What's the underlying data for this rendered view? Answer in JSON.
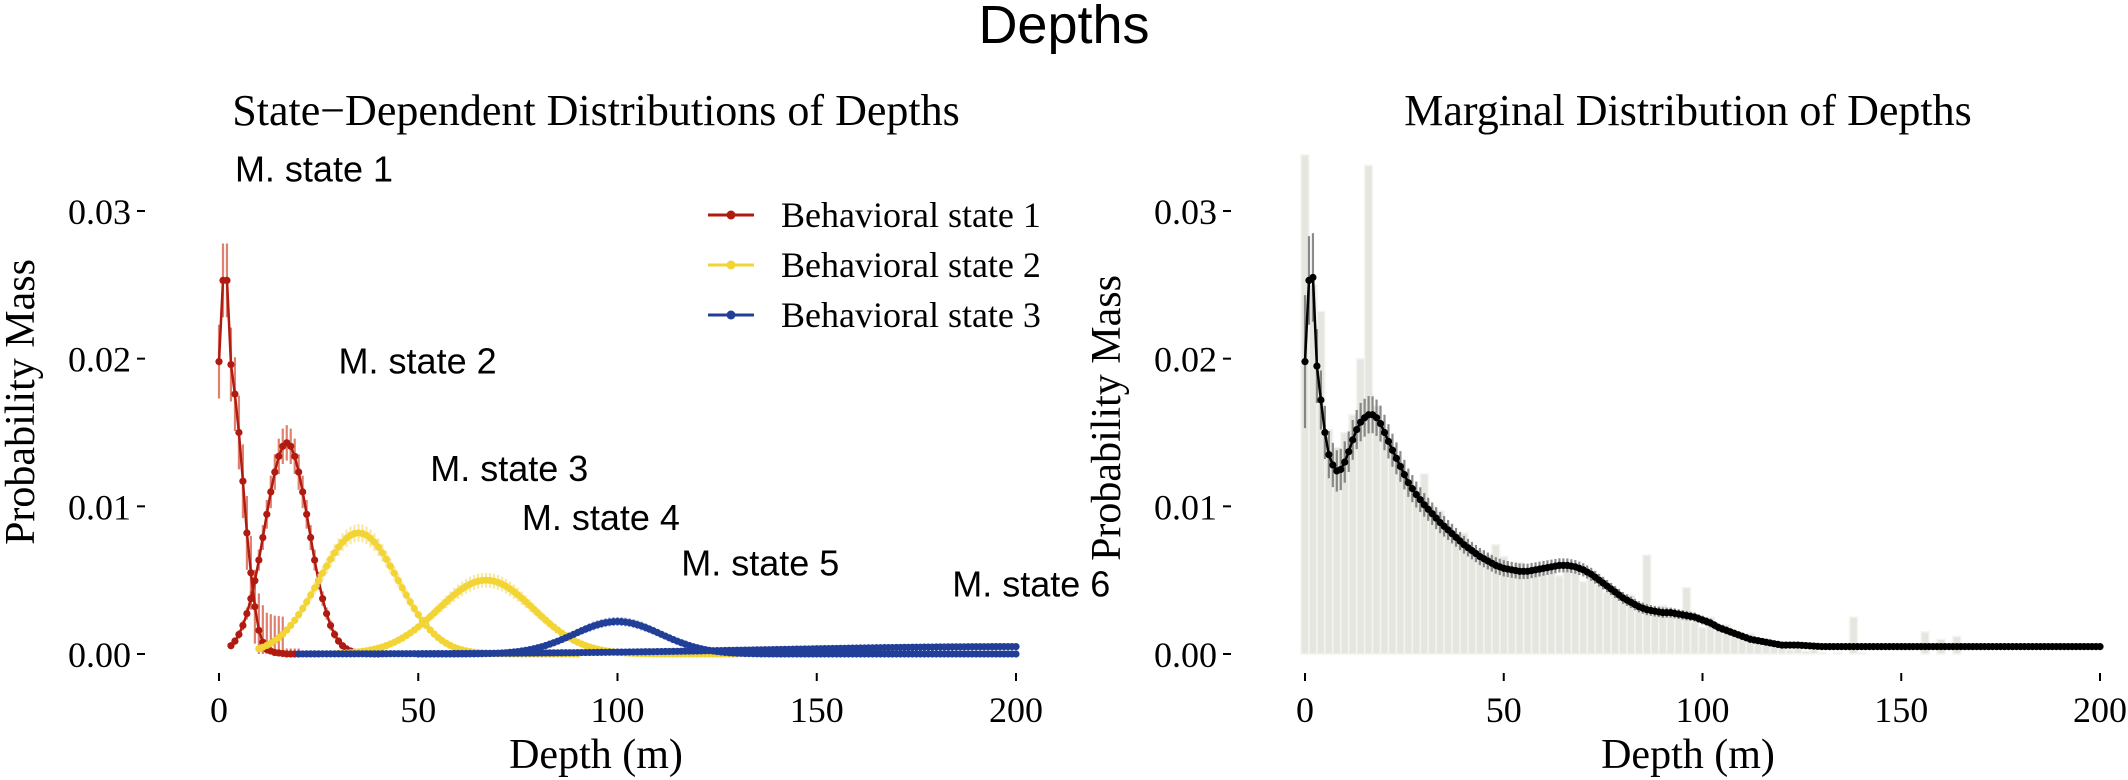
{
  "figure_title": "Depths",
  "colors": {
    "state1": "#b01a10",
    "state1_bar": "#d8604a",
    "state2": "#f3d435",
    "state2_bar": "#f7e488",
    "state3": "#213f99",
    "state3_bar": "#7f91cc",
    "marginal": "#000000",
    "marginal_bar": "#6e6e6e",
    "histogram": "#e6e6e1"
  },
  "chart_data": [
    {
      "type": "line",
      "title": "State−Dependent Distributions of Depths",
      "xlabel": "Depth (m)",
      "ylabel": "Probability Mass",
      "xlim": [
        0,
        200
      ],
      "ylim": [
        0,
        0.03
      ],
      "x_ticks": [
        0,
        50,
        100,
        150,
        200
      ],
      "y_ticks": [
        0.0,
        0.01,
        0.02,
        0.03
      ],
      "y_tick_labels": [
        "0.00",
        "0.01",
        "0.02",
        "0.03"
      ],
      "grid": false,
      "legend": {
        "position": "top-right",
        "entries": [
          "Behavioral state 1",
          "Behavioral state 2",
          "Behavioral state 3"
        ]
      },
      "annotations": [
        {
          "text": "M. state 1",
          "x": 4,
          "y": 0.032
        },
        {
          "text": "M. state 2",
          "x": 30,
          "y": 0.019
        },
        {
          "text": "M. state 3",
          "x": 53,
          "y": 0.0117
        },
        {
          "text": "M. state 4",
          "x": 76,
          "y": 0.0084
        },
        {
          "text": "M. state 5",
          "x": 116,
          "y": 0.0053
        },
        {
          "text": "M. state 6",
          "x": 184,
          "y": 0.0039
        }
      ],
      "series": [
        {
          "name": "Behavioral state 1",
          "color_key": "state1",
          "components": [
            {
              "points": [
                [
                  0,
                  0.0198
                ],
                [
                  1,
                  0.0253
                ],
                [
                  2,
                  0.0253
                ],
                [
                  3,
                  0.0196
                ],
                [
                  4,
                  0.0176
                ],
                [
                  5,
                  0.015
                ],
                [
                  6,
                  0.0117
                ],
                [
                  7,
                  0.0082
                ],
                [
                  8,
                  0.0055
                ],
                [
                  9,
                  0.0032
                ],
                [
                  10,
                  0.0016
                ],
                [
                  11,
                  0.0008
                ],
                [
                  12,
                  0.0003
                ],
                [
                  14,
                  0.0001
                ],
                [
                  17,
                  0.0
                ],
                [
                  20,
                  0.0
                ]
              ],
              "error": 0.0025
            },
            {
              "center": 17,
              "sd": 5.5,
              "peak": 0.0143,
              "error": 0.0012,
              "from": 3,
              "to": 40
            }
          ]
        },
        {
          "name": "Behavioral state 2",
          "color_key": "state2",
          "components": [
            {
              "center": 35,
              "sd": 10,
              "peak": 0.0082,
              "error": 0.0006,
              "from": 10,
              "to": 90
            },
            {
              "center": 67,
              "sd": 12,
              "peak": 0.005,
              "error": 0.0005,
              "from": 30,
              "to": 130
            }
          ]
        },
        {
          "name": "Behavioral state 3",
          "color_key": "state3",
          "components": [
            {
              "center": 100,
              "sd": 11,
              "peak": 0.0022,
              "error": 0.0003,
              "from": 50,
              "to": 200
            },
            {
              "center": 200,
              "sd": 60,
              "peak": 0.0005,
              "error": 0.0001,
              "from": 20,
              "to": 200
            }
          ]
        }
      ]
    },
    {
      "type": "line",
      "title": "Marginal Distribution of Depths",
      "xlabel": "Depth (m)",
      "ylabel": "Probability Mass",
      "xlim": [
        0,
        200
      ],
      "ylim": [
        0,
        0.03
      ],
      "x_ticks": [
        0,
        50,
        100,
        150,
        200
      ],
      "y_ticks": [
        0.0,
        0.01,
        0.02,
        0.03
      ],
      "y_tick_labels": [
        "0.00",
        "0.01",
        "0.02",
        "0.03"
      ],
      "grid": false,
      "histogram": {
        "bin_width": 2,
        "bins": [
          [
            0,
            0.0338
          ],
          [
            2,
            0.025
          ],
          [
            4,
            0.0232
          ],
          [
            6,
            0.0152
          ],
          [
            8,
            0.014
          ],
          [
            10,
            0.015
          ],
          [
            12,
            0.0162
          ],
          [
            14,
            0.02
          ],
          [
            16,
            0.0331
          ],
          [
            18,
            0.0168
          ],
          [
            20,
            0.015
          ],
          [
            22,
            0.0138
          ],
          [
            24,
            0.013
          ],
          [
            26,
            0.0117
          ],
          [
            28,
            0.0108
          ],
          [
            30,
            0.0122
          ],
          [
            32,
            0.01
          ],
          [
            34,
            0.0097
          ],
          [
            36,
            0.0088
          ],
          [
            38,
            0.008
          ],
          [
            40,
            0.0082
          ],
          [
            42,
            0.0071
          ],
          [
            44,
            0.007
          ],
          [
            46,
            0.0067
          ],
          [
            48,
            0.0074
          ],
          [
            50,
            0.0066
          ],
          [
            52,
            0.0059
          ],
          [
            54,
            0.0062
          ],
          [
            56,
            0.0054
          ],
          [
            58,
            0.0055
          ],
          [
            60,
            0.006
          ],
          [
            62,
            0.0058
          ],
          [
            64,
            0.0053
          ],
          [
            66,
            0.0061
          ],
          [
            68,
            0.0056
          ],
          [
            70,
            0.0049
          ],
          [
            72,
            0.0052
          ],
          [
            74,
            0.0047
          ],
          [
            76,
            0.0042
          ],
          [
            78,
            0.0044
          ],
          [
            80,
            0.0036
          ],
          [
            82,
            0.004
          ],
          [
            84,
            0.0035
          ],
          [
            86,
            0.0067
          ],
          [
            88,
            0.0028
          ],
          [
            90,
            0.0033
          ],
          [
            92,
            0.003
          ],
          [
            94,
            0.0027
          ],
          [
            96,
            0.0045
          ],
          [
            98,
            0.0022
          ],
          [
            100,
            0.0018
          ],
          [
            102,
            0.0025
          ],
          [
            104,
            0.0016
          ],
          [
            106,
            0.002
          ],
          [
            108,
            0.0013
          ],
          [
            110,
            0.0011
          ],
          [
            112,
            0.0014
          ],
          [
            114,
            0.0008
          ],
          [
            116,
            0.001
          ],
          [
            118,
            0.0005
          ],
          [
            120,
            0.0007
          ],
          [
            122,
            0.0003
          ],
          [
            124,
            0.0004
          ],
          [
            126,
            0.0002
          ],
          [
            128,
            0.0003
          ],
          [
            130,
            0.0001
          ],
          [
            134,
            0.0001
          ],
          [
            138,
            0.0025
          ],
          [
            140,
            0.0001
          ],
          [
            156,
            0.0015
          ],
          [
            160,
            0.001
          ],
          [
            164,
            0.0012
          ]
        ]
      },
      "series": [
        {
          "name": "",
          "color_key": "marginal",
          "points": [
            [
              0,
              0.0198
            ],
            [
              1,
              0.0253
            ],
            [
              2,
              0.0255
            ],
            [
              3,
              0.0195
            ],
            [
              4,
              0.0172
            ],
            [
              5,
              0.015
            ],
            [
              6,
              0.0135
            ],
            [
              7,
              0.0128
            ],
            [
              8,
              0.0124
            ],
            [
              9,
              0.0125
            ],
            [
              10,
              0.013
            ],
            [
              11,
              0.0137
            ],
            [
              12,
              0.0145
            ],
            [
              13,
              0.0152
            ],
            [
              14,
              0.0157
            ],
            [
              15,
              0.016
            ],
            [
              16,
              0.0162
            ],
            [
              17,
              0.0162
            ],
            [
              18,
              0.016
            ],
            [
              19,
              0.0156
            ],
            [
              20,
              0.015
            ],
            [
              22,
              0.0138
            ],
            [
              24,
              0.0127
            ],
            [
              26,
              0.0116
            ],
            [
              28,
              0.0108
            ],
            [
              30,
              0.0101
            ],
            [
              32,
              0.0095
            ],
            [
              34,
              0.0089
            ],
            [
              36,
              0.0084
            ],
            [
              38,
              0.0079
            ],
            [
              40,
              0.0074
            ],
            [
              42,
              0.007
            ],
            [
              44,
              0.0066
            ],
            [
              46,
              0.0063
            ],
            [
              48,
              0.006
            ],
            [
              50,
              0.0058
            ],
            [
              52,
              0.0057
            ],
            [
              54,
              0.0056
            ],
            [
              56,
              0.0056
            ],
            [
              58,
              0.0057
            ],
            [
              60,
              0.0058
            ],
            [
              62,
              0.0059
            ],
            [
              64,
              0.006
            ],
            [
              66,
              0.006
            ],
            [
              68,
              0.0059
            ],
            [
              70,
              0.0057
            ],
            [
              72,
              0.0054
            ],
            [
              74,
              0.005
            ],
            [
              76,
              0.0046
            ],
            [
              78,
              0.0042
            ],
            [
              80,
              0.0038
            ],
            [
              82,
              0.0035
            ],
            [
              84,
              0.0032
            ],
            [
              86,
              0.003
            ],
            [
              88,
              0.0029
            ],
            [
              90,
              0.0028
            ],
            [
              92,
              0.0028
            ],
            [
              94,
              0.0027
            ],
            [
              96,
              0.0026
            ],
            [
              98,
              0.0025
            ],
            [
              100,
              0.0023
            ],
            [
              102,
              0.0021
            ],
            [
              104,
              0.0018
            ],
            [
              106,
              0.0016
            ],
            [
              108,
              0.0014
            ],
            [
              110,
              0.0012
            ],
            [
              112,
              0.001
            ],
            [
              114,
              0.0009
            ],
            [
              116,
              0.0008
            ],
            [
              118,
              0.0007
            ],
            [
              120,
              0.0006
            ],
            [
              124,
              0.0006
            ],
            [
              130,
              0.0005
            ],
            [
              140,
              0.0005
            ],
            [
              150,
              0.0005
            ],
            [
              160,
              0.0005
            ],
            [
              170,
              0.0005
            ],
            [
              180,
              0.0005
            ],
            [
              190,
              0.0005
            ],
            [
              200,
              0.0005
            ]
          ],
          "error": [
            [
              0,
              0.0045
            ],
            [
              1,
              0.003
            ],
            [
              2,
              0.003
            ],
            [
              3,
              0.0025
            ],
            [
              4,
              0.002
            ],
            [
              5,
              0.0018
            ],
            [
              6,
              0.0016
            ],
            [
              8,
              0.0014
            ],
            [
              10,
              0.0014
            ],
            [
              14,
              0.0013
            ],
            [
              20,
              0.0012
            ],
            [
              30,
              0.0008
            ],
            [
              40,
              0.0006
            ],
            [
              60,
              0.0005
            ],
            [
              80,
              0.0004
            ],
            [
              100,
              0.0003
            ],
            [
              120,
              0.0002
            ],
            [
              200,
              0.0001
            ]
          ]
        }
      ]
    }
  ]
}
